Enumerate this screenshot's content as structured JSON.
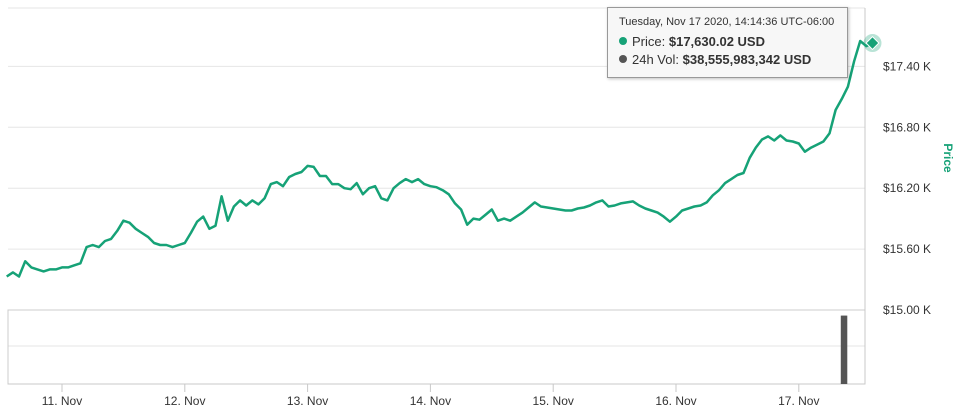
{
  "chart_data": {
    "type": "line",
    "title": "",
    "xlabel": "",
    "ylabel": "Price",
    "x_tick_labels": [
      "11. Nov",
      "12. Nov",
      "13. Nov",
      "14. Nov",
      "15. Nov",
      "16. Nov",
      "17. Nov"
    ],
    "y_tick_labels": [
      "$15.00 K",
      "$15.60 K",
      "$16.20 K",
      "$16.80 K",
      "$17.40 K"
    ],
    "ylim": [
      15000,
      18000
    ],
    "grid": true,
    "colors": {
      "price": "#16a277",
      "volume": "#555555"
    },
    "series": [
      {
        "values": [
          [
            10.55,
            15330
          ],
          [
            10.6,
            15370
          ],
          [
            10.65,
            15330
          ],
          [
            10.7,
            15480
          ],
          [
            10.75,
            15420
          ],
          [
            10.8,
            15400
          ],
          [
            10.85,
            15380
          ],
          [
            10.9,
            15400
          ],
          [
            10.95,
            15400
          ],
          [
            11.0,
            15420
          ],
          [
            11.05,
            15420
          ],
          [
            11.1,
            15440
          ],
          [
            11.15,
            15460
          ],
          [
            11.2,
            15620
          ],
          [
            11.25,
            15640
          ],
          [
            11.3,
            15620
          ],
          [
            11.35,
            15680
          ],
          [
            11.4,
            15700
          ],
          [
            11.45,
            15780
          ],
          [
            11.5,
            15880
          ],
          [
            11.55,
            15860
          ],
          [
            11.6,
            15800
          ],
          [
            11.65,
            15760
          ],
          [
            11.7,
            15720
          ],
          [
            11.75,
            15660
          ],
          [
            11.8,
            15640
          ],
          [
            11.85,
            15640
          ],
          [
            11.9,
            15620
          ],
          [
            11.95,
            15640
          ],
          [
            12.0,
            15660
          ],
          [
            12.05,
            15760
          ],
          [
            12.1,
            15870
          ],
          [
            12.15,
            15920
          ],
          [
            12.2,
            15800
          ],
          [
            12.25,
            15830
          ],
          [
            12.3,
            16120
          ],
          [
            12.35,
            15880
          ],
          [
            12.4,
            16020
          ],
          [
            12.45,
            16080
          ],
          [
            12.5,
            16030
          ],
          [
            12.55,
            16080
          ],
          [
            12.6,
            16040
          ],
          [
            12.65,
            16100
          ],
          [
            12.7,
            16240
          ],
          [
            12.75,
            16260
          ],
          [
            12.8,
            16220
          ],
          [
            12.85,
            16310
          ],
          [
            12.9,
            16340
          ],
          [
            12.95,
            16360
          ],
          [
            13.0,
            16420
          ],
          [
            13.05,
            16410
          ],
          [
            13.1,
            16320
          ],
          [
            13.15,
            16320
          ],
          [
            13.2,
            16240
          ],
          [
            13.25,
            16240
          ],
          [
            13.3,
            16200
          ],
          [
            13.35,
            16190
          ],
          [
            13.4,
            16250
          ],
          [
            13.45,
            16140
          ],
          [
            13.5,
            16200
          ],
          [
            13.55,
            16220
          ],
          [
            13.6,
            16100
          ],
          [
            13.65,
            16080
          ],
          [
            13.7,
            16200
          ],
          [
            13.75,
            16250
          ],
          [
            13.8,
            16290
          ],
          [
            13.85,
            16260
          ],
          [
            13.9,
            16290
          ],
          [
            13.95,
            16240
          ],
          [
            14.0,
            16220
          ],
          [
            14.05,
            16210
          ],
          [
            14.1,
            16180
          ],
          [
            14.15,
            16140
          ],
          [
            14.2,
            16050
          ],
          [
            14.25,
            15990
          ],
          [
            14.3,
            15840
          ],
          [
            14.35,
            15900
          ],
          [
            14.4,
            15890
          ],
          [
            14.45,
            15940
          ],
          [
            14.5,
            15990
          ],
          [
            14.55,
            15880
          ],
          [
            14.6,
            15900
          ],
          [
            14.65,
            15880
          ],
          [
            14.7,
            15920
          ],
          [
            14.75,
            15960
          ],
          [
            14.8,
            16010
          ],
          [
            14.85,
            16060
          ],
          [
            14.9,
            16020
          ],
          [
            14.95,
            16010
          ],
          [
            15.0,
            16000
          ],
          [
            15.05,
            15990
          ],
          [
            15.1,
            15980
          ],
          [
            15.15,
            15980
          ],
          [
            15.2,
            16000
          ],
          [
            15.25,
            16010
          ],
          [
            15.3,
            16030
          ],
          [
            15.35,
            16060
          ],
          [
            15.4,
            16080
          ],
          [
            15.45,
            16020
          ],
          [
            15.5,
            16030
          ],
          [
            15.55,
            16050
          ],
          [
            15.6,
            16060
          ],
          [
            15.65,
            16070
          ],
          [
            15.7,
            16030
          ],
          [
            15.75,
            16000
          ],
          [
            15.8,
            15980
          ],
          [
            15.85,
            15960
          ],
          [
            15.9,
            15920
          ],
          [
            15.95,
            15870
          ],
          [
            16.0,
            15920
          ],
          [
            16.05,
            15980
          ],
          [
            16.1,
            16000
          ],
          [
            16.15,
            16020
          ],
          [
            16.2,
            16030
          ],
          [
            16.25,
            16060
          ],
          [
            16.3,
            16130
          ],
          [
            16.35,
            16180
          ],
          [
            16.4,
            16250
          ],
          [
            16.45,
            16290
          ],
          [
            16.5,
            16330
          ],
          [
            16.55,
            16350
          ],
          [
            16.6,
            16500
          ],
          [
            16.65,
            16600
          ],
          [
            16.7,
            16680
          ],
          [
            16.75,
            16710
          ],
          [
            16.8,
            16670
          ],
          [
            16.85,
            16720
          ],
          [
            16.9,
            16670
          ],
          [
            16.95,
            16660
          ],
          [
            17.0,
            16640
          ],
          [
            17.05,
            16560
          ],
          [
            17.1,
            16600
          ],
          [
            17.15,
            16630
          ],
          [
            17.2,
            16660
          ],
          [
            17.25,
            16740
          ],
          [
            17.3,
            16970
          ],
          [
            17.35,
            17080
          ],
          [
            17.4,
            17200
          ],
          [
            17.45,
            17450
          ],
          [
            17.5,
            17650
          ],
          [
            17.55,
            17600
          ],
          [
            17.6,
            17630
          ]
        ]
      },
      {
        "values": [
          [
            17.35,
            3800000000
          ],
          [
            17.36,
            3800000000
          ],
          [
            17.37,
            3800000000
          ],
          [
            17.38,
            3800000000
          ],
          [
            17.39,
            3800000000
          ]
        ]
      }
    ],
    "tooltip": {
      "date": "Tuesday, Nov 17 2020, 14:14:36 UTC-06:00",
      "price_label": "Price:",
      "price_value": "$17,630.02 USD",
      "volume_label": "24h Vol:",
      "volume_value": "$38,555,983,342 USD"
    }
  }
}
